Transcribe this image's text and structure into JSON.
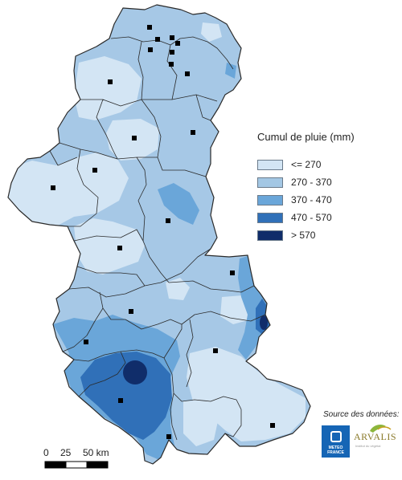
{
  "legend": {
    "title": "Cumul de pluie (mm)",
    "classes": [
      {
        "label": "<= 270",
        "color": "#d3e5f4"
      },
      {
        "label": "270 - 370",
        "color": "#a3c7e4"
      },
      {
        "label": "370 - 470",
        "color": "#6aa6d9"
      },
      {
        "label": "470 - 570",
        "color": "#3070b8"
      },
      {
        "label": "> 570",
        "color": "#102d6a"
      }
    ]
  },
  "scalebar": {
    "labels": [
      "0",
      "25",
      "50 km"
    ]
  },
  "source": {
    "label": "Source des données:",
    "logo1_text": "METEO FRANCE",
    "logo2_text": "ARVALIS",
    "logo2_subtext": "Institut du végétal"
  },
  "colors": {
    "region_border": "#2a2a2a",
    "station_marker": "#000000",
    "background": "#ffffff"
  },
  "icons": {
    "station": "black-square-marker",
    "meteo_logo": "meteo-france-logo",
    "arvalis_logo": "arvalis-logo"
  }
}
